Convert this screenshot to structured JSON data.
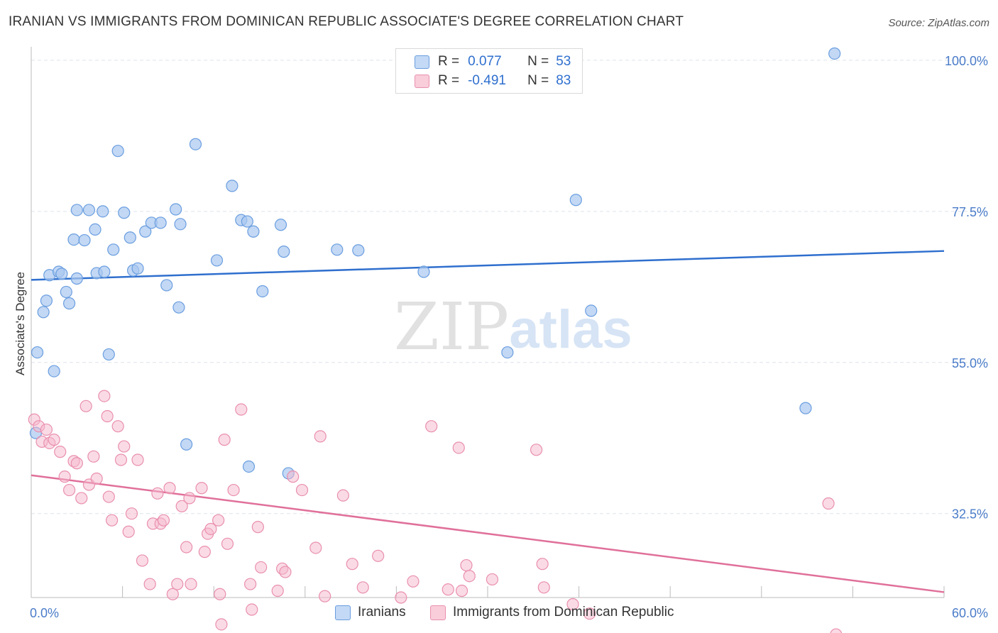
{
  "title": "IRANIAN VS IMMIGRANTS FROM DOMINICAN REPUBLIC ASSOCIATE'S DEGREE CORRELATION CHART",
  "source": "Source: ZipAtlas.com",
  "watermark": {
    "zip": "ZIP",
    "atlas": "atlas"
  },
  "legend": {
    "rows": [
      {
        "r_label": "R =",
        "r_value": "0.077",
        "n_label": "N =",
        "n_value": "53",
        "color": "#a9c8f0"
      },
      {
        "r_label": "R =",
        "r_value": "-0.491",
        "n_label": "N =",
        "n_value": "83",
        "color": "#f5b8cb"
      }
    ]
  },
  "bottom_legend": [
    {
      "label": "Iranians",
      "color": "#a9c8f0"
    },
    {
      "label": "Immigrants from Dominican Republic",
      "color": "#f5b8cb"
    }
  ],
  "colors": {
    "blue_fill": "#a9c8f0",
    "blue_stroke": "#6a9ee0",
    "blue_line": "#2f6fce",
    "pink_fill": "#f5b8cb",
    "pink_stroke": "#e98fae",
    "pink_line": "#e0709a",
    "grid": "#dde3ea",
    "tick_text": "#4a7cc9"
  },
  "chart_data": {
    "type": "scatter",
    "title": "IRANIAN VS IMMIGRANTS FROM DOMINICAN REPUBLIC ASSOCIATE'S DEGREE CORRELATION CHART",
    "xlabel": "",
    "ylabel": "Associate's Degree",
    "xlim": [
      0,
      60
    ],
    "ylim": [
      20,
      102
    ],
    "x_tick_labels": [
      "0.0%",
      "60.0%"
    ],
    "y_ticks": [
      32.5,
      55.0,
      77.5,
      100.0
    ],
    "y_tick_labels": [
      "32.5%",
      "55.0%",
      "77.5%",
      "100.0%"
    ],
    "grid": true,
    "legend_position": "top-center",
    "series": [
      {
        "name": "Iranians",
        "trend": {
          "x": [
            0,
            60
          ],
          "y": [
            67.3,
            71.6
          ]
        },
        "points": [
          [
            0.3,
            44.5
          ],
          [
            0.4,
            56.5
          ],
          [
            0.8,
            62.5
          ],
          [
            1.0,
            64.2
          ],
          [
            1.2,
            68.0
          ],
          [
            1.5,
            53.7
          ],
          [
            1.8,
            68.5
          ],
          [
            2.0,
            68.2
          ],
          [
            2.3,
            65.5
          ],
          [
            2.5,
            63.8
          ],
          [
            2.8,
            73.3
          ],
          [
            3.0,
            67.5
          ],
          [
            3.0,
            77.7
          ],
          [
            3.5,
            73.2
          ],
          [
            3.8,
            77.7
          ],
          [
            4.2,
            74.8
          ],
          [
            4.3,
            68.3
          ],
          [
            4.7,
            77.5
          ],
          [
            4.8,
            68.5
          ],
          [
            5.1,
            56.2
          ],
          [
            5.4,
            71.8
          ],
          [
            5.7,
            86.5
          ],
          [
            6.1,
            77.3
          ],
          [
            6.5,
            73.6
          ],
          [
            6.7,
            68.7
          ],
          [
            7.0,
            69.0
          ],
          [
            7.5,
            74.5
          ],
          [
            7.9,
            75.8
          ],
          [
            8.5,
            75.8
          ],
          [
            8.9,
            66.5
          ],
          [
            9.5,
            77.8
          ],
          [
            9.7,
            63.2
          ],
          [
            9.8,
            75.6
          ],
          [
            10.2,
            42.8
          ],
          [
            10.8,
            87.5
          ],
          [
            12.2,
            70.2
          ],
          [
            13.2,
            81.3
          ],
          [
            13.8,
            76.2
          ],
          [
            14.2,
            76.0
          ],
          [
            14.3,
            39.5
          ],
          [
            14.6,
            74.5
          ],
          [
            15.2,
            65.6
          ],
          [
            16.4,
            75.5
          ],
          [
            16.6,
            71.5
          ],
          [
            16.9,
            38.5
          ],
          [
            20.1,
            71.8
          ],
          [
            21.5,
            71.7
          ],
          [
            25.8,
            68.5
          ],
          [
            31.3,
            56.5
          ],
          [
            35.8,
            79.2
          ],
          [
            36.8,
            62.7
          ],
          [
            50.9,
            48.2
          ],
          [
            52.8,
            101.0
          ]
        ]
      },
      {
        "name": "Immigrants from Dominican Republic",
        "trend": {
          "x": [
            0,
            60
          ],
          "y": [
            38.2,
            20.8
          ]
        },
        "points": [
          [
            0.2,
            46.5
          ],
          [
            0.5,
            45.5
          ],
          [
            0.7,
            43.2
          ],
          [
            1.0,
            45.0
          ],
          [
            1.2,
            43.0
          ],
          [
            1.5,
            43.5
          ],
          [
            1.9,
            41.7
          ],
          [
            2.2,
            38.0
          ],
          [
            2.5,
            36.0
          ],
          [
            2.8,
            40.3
          ],
          [
            3.0,
            40.0
          ],
          [
            3.3,
            34.8
          ],
          [
            3.6,
            48.5
          ],
          [
            3.8,
            36.8
          ],
          [
            4.1,
            41.0
          ],
          [
            4.3,
            37.7
          ],
          [
            4.8,
            50.0
          ],
          [
            5.0,
            47.0
          ],
          [
            5.1,
            35.0
          ],
          [
            5.3,
            31.5
          ],
          [
            5.7,
            45.5
          ],
          [
            5.9,
            40.5
          ],
          [
            6.1,
            42.5
          ],
          [
            6.4,
            29.8
          ],
          [
            6.6,
            32.5
          ],
          [
            7.0,
            40.5
          ],
          [
            7.3,
            25.5
          ],
          [
            7.8,
            22.0
          ],
          [
            8.0,
            31.0
          ],
          [
            8.3,
            35.5
          ],
          [
            8.5,
            31.0
          ],
          [
            8.7,
            31.5
          ],
          [
            9.1,
            36.3
          ],
          [
            9.3,
            20.5
          ],
          [
            9.6,
            22.0
          ],
          [
            9.9,
            33.6
          ],
          [
            10.2,
            27.5
          ],
          [
            10.4,
            34.8
          ],
          [
            10.5,
            22.0
          ],
          [
            11.2,
            36.3
          ],
          [
            11.4,
            26.8
          ],
          [
            11.6,
            29.5
          ],
          [
            11.8,
            30.2
          ],
          [
            12.3,
            31.5
          ],
          [
            12.4,
            20.5
          ],
          [
            12.5,
            16.0
          ],
          [
            12.7,
            43.5
          ],
          [
            12.9,
            28.0
          ],
          [
            13.3,
            36.0
          ],
          [
            13.8,
            48.0
          ],
          [
            14.4,
            22.0
          ],
          [
            14.5,
            18.2
          ],
          [
            14.9,
            30.5
          ],
          [
            15.1,
            24.5
          ],
          [
            16.2,
            21.0
          ],
          [
            16.5,
            24.3
          ],
          [
            16.7,
            23.8
          ],
          [
            17.2,
            38.0
          ],
          [
            17.8,
            36.0
          ],
          [
            18.7,
            27.4
          ],
          [
            19.0,
            44.0
          ],
          [
            19.3,
            20.2
          ],
          [
            20.5,
            35.2
          ],
          [
            21.1,
            25.0
          ],
          [
            21.8,
            21.5
          ],
          [
            22.8,
            26.2
          ],
          [
            24.3,
            20.0
          ],
          [
            25.1,
            22.4
          ],
          [
            25.8,
            13.2
          ],
          [
            26.3,
            45.5
          ],
          [
            27.4,
            21.2
          ],
          [
            28.1,
            42.3
          ],
          [
            28.3,
            21.0
          ],
          [
            28.6,
            24.8
          ],
          [
            28.8,
            23.2
          ],
          [
            30.3,
            22.7
          ],
          [
            33.2,
            42.0
          ],
          [
            33.6,
            25.0
          ],
          [
            33.7,
            21.5
          ],
          [
            35.6,
            19.0
          ],
          [
            36.7,
            17.6
          ],
          [
            52.4,
            34.0
          ],
          [
            52.9,
            14.5
          ]
        ]
      }
    ]
  }
}
